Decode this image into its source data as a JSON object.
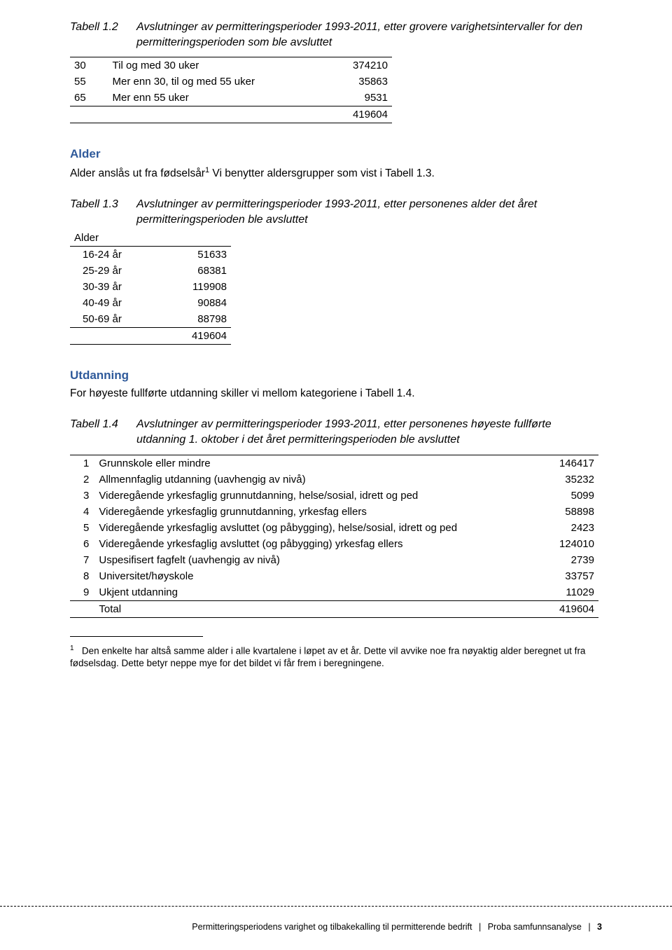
{
  "colors": {
    "heading": "#2f5a9b",
    "text": "#000000",
    "rule": "#000000"
  },
  "table12": {
    "label": "Tabell 1.2",
    "caption": "Avslutninger av permitteringsperioder 1993-2011, etter grovere varighetsintervaller for den permitteringsperioden som ble avsluttet",
    "rows": [
      {
        "k": "30",
        "d": "Til og med 30 uker",
        "v": "374210"
      },
      {
        "k": "55",
        "d": "Mer enn 30, til og med 55 uker",
        "v": "35863"
      },
      {
        "k": "65",
        "d": "Mer enn 55 uker",
        "v": "9531"
      }
    ],
    "total": "419604"
  },
  "alder": {
    "heading": "Alder",
    "body_pre": "Alder anslås ut fra fødselsår",
    "body_post": " Vi benytter aldersgrupper som vist i Tabell 1.3.",
    "table": {
      "label": "Tabell 1.3",
      "caption": "Avslutninger av permitteringsperioder 1993-2011, etter personenes alder det året permitteringsperioden ble avsluttet",
      "header": "Alder",
      "rows": [
        {
          "k": "16-24 år",
          "v": "51633"
        },
        {
          "k": "25-29 år",
          "v": "68381"
        },
        {
          "k": "30-39 år",
          "v": "119908"
        },
        {
          "k": "40-49 år",
          "v": "90884"
        },
        {
          "k": "50-69 år",
          "v": "88798"
        }
      ],
      "total": "419604"
    }
  },
  "utdanning": {
    "heading": "Utdanning",
    "body": "For høyeste fullførte utdanning skiller vi mellom kategoriene i Tabell 1.4.",
    "table": {
      "label": "Tabell 1.4",
      "caption": "Avslutninger av permitteringsperioder 1993-2011, etter personenes høyeste fullførte utdanning 1. oktober i det året permitteringsperioden ble avsluttet",
      "rows": [
        {
          "n": "1",
          "d": "Grunnskole eller mindre",
          "v": "146417"
        },
        {
          "n": "2",
          "d": "Allmennfaglig utdanning (uavhengig av nivå)",
          "v": "35232"
        },
        {
          "n": "3",
          "d": "Videregående yrkesfaglig grunnutdanning, helse/sosial, idrett og ped",
          "v": "5099"
        },
        {
          "n": "4",
          "d": "Videregående yrkesfaglig grunnutdanning, yrkesfag ellers",
          "v": "58898"
        },
        {
          "n": "5",
          "d": "Videregående yrkesfaglig avsluttet (og påbygging), helse/sosial, idrett og ped",
          "v": "2423"
        },
        {
          "n": "6",
          "d": "Videregående yrkesfaglig avsluttet (og påbygging) yrkesfag ellers",
          "v": "124010"
        },
        {
          "n": "7",
          "d": "Uspesifisert fagfelt (uavhengig av nivå)",
          "v": "2739"
        },
        {
          "n": "8",
          "d": "Universitet/høyskole",
          "v": "33757"
        },
        {
          "n": "9",
          "d": "Ukjent utdanning",
          "v": "11029"
        }
      ],
      "total_label": "Total",
      "total": "419604"
    }
  },
  "footnote": {
    "marker": "1",
    "text": "Den enkelte har altså samme alder i alle kvartalene i løpet av et år. Dette vil avvike noe fra nøyaktig alder beregnet ut fra fødselsdag. Dette betyr neppe mye for det bildet vi får frem i beregningene."
  },
  "footer": {
    "left": "Permitteringsperiodens varighet og tilbakekalling til permitterende bedrift",
    "right": "Proba samfunnsanalyse",
    "page": "3"
  }
}
